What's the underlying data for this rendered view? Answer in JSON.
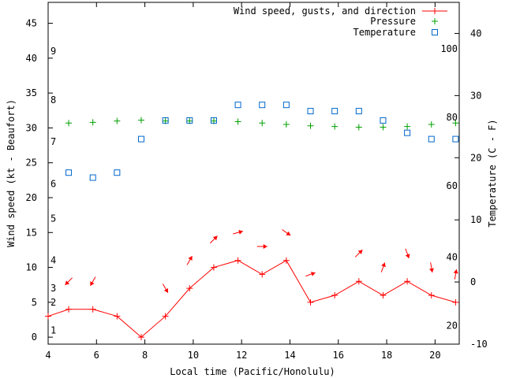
{
  "chart_data": {
    "type": "line",
    "xlabel": "Local time (Pacific/Honolulu)",
    "ylabel_left": "Wind speed (kt - Beaufort)",
    "ylabel_right": "Temperature (C - F)",
    "xlim": [
      4,
      21
    ],
    "ylim_left": [
      -1,
      48
    ],
    "ylim_right_c": [
      -10,
      45
    ],
    "x_ticks": [
      4,
      6,
      8,
      10,
      12,
      14,
      16,
      18,
      20
    ],
    "y_ticks_left": [
      0,
      5,
      10,
      15,
      20,
      25,
      30,
      35,
      40,
      45
    ],
    "y_ticks_right_c": [
      -10,
      0,
      10,
      20,
      30,
      40
    ],
    "beaufort_labels": [
      {
        "label": "1",
        "kt": 1
      },
      {
        "label": "2",
        "kt": 5
      },
      {
        "label": "3",
        "kt": 7
      },
      {
        "label": "4",
        "kt": 11
      },
      {
        "label": "5",
        "kt": 17
      },
      {
        "label": "6",
        "kt": 22
      },
      {
        "label": "7",
        "kt": 28
      },
      {
        "label": "8",
        "kt": 34
      },
      {
        "label": "9",
        "kt": 41
      }
    ],
    "fahrenheit_labels": [
      {
        "label": "20",
        "c": -7
      },
      {
        "label": "40",
        "c": 4
      },
      {
        "label": "60",
        "c": 15.5
      },
      {
        "label": "80",
        "c": 26.5
      },
      {
        "label": "100",
        "c": 37.5
      }
    ],
    "legend": {
      "wind": "Wind speed, gusts, and direction",
      "pressure": "Pressure",
      "temperature": "Temperature"
    },
    "colors": {
      "wind": "#ff0000",
      "pressure": "#00a000",
      "temperature": "#0066cc"
    },
    "series": [
      {
        "name": "Wind speed",
        "x": [
          4,
          4.85,
          5.85,
          6.85,
          7.85,
          8.85,
          9.85,
          10.85,
          11.85,
          12.85,
          13.85,
          14.85,
          15.85,
          16.85,
          17.85,
          18.85,
          19.85,
          20.85
        ],
        "values": [
          3,
          4,
          4,
          3,
          0,
          3,
          7,
          10,
          11,
          9,
          11,
          5,
          6,
          8,
          6,
          8,
          6,
          5
        ]
      },
      {
        "name": "Pressure",
        "x": [
          4.85,
          5.85,
          6.85,
          7.85,
          8.85,
          9.85,
          10.85,
          11.85,
          12.85,
          13.85,
          14.85,
          15.85,
          16.85,
          17.85,
          18.85,
          19.85,
          20.85
        ],
        "values": [
          30.7,
          30.8,
          31.0,
          31.1,
          31.0,
          31.0,
          31.0,
          30.9,
          30.7,
          30.5,
          30.3,
          30.2,
          30.1,
          30.1,
          30.2,
          30.5,
          30.7
        ]
      },
      {
        "name": "Temperature",
        "x": [
          4.85,
          5.85,
          6.85,
          7.85,
          8.85,
          9.85,
          10.85,
          11.85,
          12.85,
          13.85,
          14.85,
          15.85,
          16.85,
          17.85,
          18.85,
          19.85,
          20.85
        ],
        "values": [
          17.6,
          16.8,
          17.6,
          23.0,
          26.0,
          26.0,
          26.0,
          28.5,
          28.5,
          28.5,
          27.5,
          27.5,
          27.5,
          26.0,
          24.0,
          23.0,
          23.0
        ]
      }
    ],
    "wind_direction_arrows": [
      {
        "x": 4.85,
        "kt": 8,
        "toward_deg": 225
      },
      {
        "x": 5.85,
        "kt": 8,
        "toward_deg": 210
      },
      {
        "x": 8.85,
        "kt": 7,
        "toward_deg": 150
      },
      {
        "x": 9.85,
        "kt": 11,
        "toward_deg": 30
      },
      {
        "x": 10.85,
        "kt": 14,
        "toward_deg": 45
      },
      {
        "x": 11.85,
        "kt": 15,
        "toward_deg": 75
      },
      {
        "x": 12.85,
        "kt": 13,
        "toward_deg": 90
      },
      {
        "x": 13.85,
        "kt": 15,
        "toward_deg": 125
      },
      {
        "x": 14.85,
        "kt": 9,
        "toward_deg": 70
      },
      {
        "x": 16.85,
        "kt": 12,
        "toward_deg": 45
      },
      {
        "x": 17.85,
        "kt": 10,
        "toward_deg": 20
      },
      {
        "x": 18.85,
        "kt": 12,
        "toward_deg": 160
      },
      {
        "x": 19.85,
        "kt": 10,
        "toward_deg": 170
      },
      {
        "x": 20.85,
        "kt": 9,
        "toward_deg": 10
      }
    ]
  }
}
